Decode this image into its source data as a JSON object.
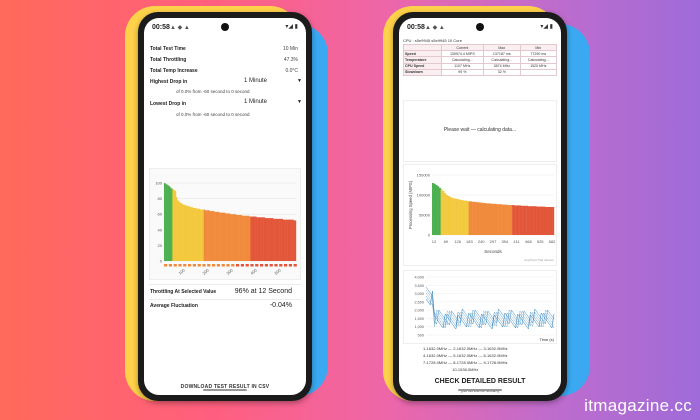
{
  "watermark": "itmagazine.cc",
  "left_phone": {
    "status": {
      "time": "00:58"
    },
    "stats": [
      {
        "label": "Total Test Time",
        "value": "10 Min"
      },
      {
        "label": "Total Throttling",
        "value": "47.3%"
      },
      {
        "label": "Total Temp Increase",
        "value": "0.0°C"
      }
    ],
    "highest_drop": {
      "label": "Highest Drop in",
      "select": "1 Minute",
      "desc": "of 0.0% from -60 second to 0 second"
    },
    "lowest_drop": {
      "label": "Lowest Drop in",
      "select": "1 Minute",
      "desc": "of 0.0% from -60 second to 0 second"
    },
    "chart_data": {
      "type": "bar",
      "y_ticks": [
        "100",
        "80",
        "60",
        "40",
        "20",
        "0"
      ],
      "x_ticks": [
        "100",
        "200",
        "300",
        "400",
        "500"
      ],
      "ylim": [
        0,
        100
      ],
      "values": [
        100,
        99,
        98,
        97,
        96,
        94,
        93,
        92,
        91,
        90,
        82,
        78,
        76,
        75,
        74,
        73,
        72,
        72,
        71,
        71,
        70,
        70,
        69,
        69,
        68,
        68,
        68,
        67,
        67,
        67,
        66,
        66,
        66,
        66,
        65,
        65,
        65,
        65,
        64,
        64,
        64,
        64,
        63,
        63,
        63,
        63,
        62,
        62,
        62,
        62,
        62,
        61,
        61,
        61,
        61,
        60,
        60,
        60,
        60,
        60,
        59,
        59,
        59,
        59,
        59,
        58,
        58,
        58,
        58,
        58,
        58,
        57,
        57,
        57,
        57,
        57,
        57,
        56,
        56,
        56,
        56,
        56,
        56,
        56,
        55,
        55,
        55,
        55,
        55,
        55,
        55,
        54,
        54,
        54,
        54,
        54,
        54,
        54,
        54,
        53,
        53,
        53,
        53,
        53,
        53,
        53,
        53,
        53,
        52,
        52
      ]
    },
    "throttling_label": "Throttling At Selected Value",
    "throttling_value": "96% at 12 Second",
    "avg_label": "Average Fluctuation",
    "avg_value": "-0.04%",
    "download_label": "DOWNLOAD TEST RESULT IN CSV"
  },
  "right_phone": {
    "status": {
      "time": "00:58"
    },
    "cpu_title": "CPU : s5e9945 s5e9945 10 Core",
    "table": {
      "headers": [
        "",
        "Current",
        "Max",
        "Min"
      ],
      "rows": [
        [
          "Speed",
          "135974.4 MIPS",
          "137187 ms",
          "77290 ms"
        ],
        [
          "Temperature",
          "Calculating...",
          "Calculating...",
          "Calculating..."
        ],
        [
          "CPU Speed",
          "1107 MHz",
          "3874 MHz",
          "1520 MHz"
        ],
        [
          "Slowdown",
          "99 %",
          "32 %",
          ""
        ]
      ]
    },
    "wait_text": "Please wait — calculating data...",
    "chart_data": {
      "type": "bar",
      "ylabel": "Processing Speed (MIPS)",
      "xlabel": "Seconds",
      "y_ticks": [
        "150000",
        "100000",
        "50000",
        "0"
      ],
      "x_ticks": [
        "12",
        "69",
        "126",
        "183",
        "240",
        "297",
        "354",
        "411",
        "468",
        "525",
        "582"
      ],
      "ylim": [
        0,
        150000
      ],
      "values": [
        130000,
        128000,
        125000,
        122000,
        118000,
        115000,
        110000,
        105000,
        100000,
        98000,
        95000,
        93000,
        92000,
        91000,
        90000,
        89000,
        88000,
        87000,
        86000,
        86000,
        85000,
        84000,
        84000,
        83000,
        83000,
        82000,
        82000,
        81000,
        81000,
        80000,
        80000,
        79000,
        79000,
        79000,
        78000,
        78000,
        78000,
        77000,
        77000,
        77000,
        76000,
        76000,
        76000,
        75000,
        75000,
        75000,
        75000,
        74000,
        74000,
        74000,
        74000,
        73000,
        73000,
        73000,
        73000,
        72000,
        72000,
        72000,
        72000,
        72000,
        71000,
        71000,
        71000,
        71000,
        71000,
        70000,
        70000,
        70000,
        70000,
        70000
      ],
      "credit": "AnyChart Trial Version"
    },
    "freq_chart": {
      "y_ticks": [
        "4,000",
        "3,500",
        "3,000",
        "2,500",
        "2,000",
        "1,500",
        "1,000",
        "500"
      ],
      "time_label": "Time (s)",
      "legend": [
        "1-1632.0MHz",
        "2-1632.0MHz",
        "3-1632.0MHz",
        "4-1632.0MHz",
        "5-1632.0MHz",
        "6-1632.0MHz",
        "7-1728.0MHz",
        "8-1728.0MHz",
        "9-1728.0MHz",
        "10-1536.0MHz"
      ]
    },
    "check_label": "CHECK DETAILED RESULT",
    "ad_note": "(An ad will be shown)"
  },
  "colors": {
    "green": "#4caf50",
    "yellow": "#f3c93e",
    "orange": "#f08a3c",
    "red": "#e2563a"
  }
}
